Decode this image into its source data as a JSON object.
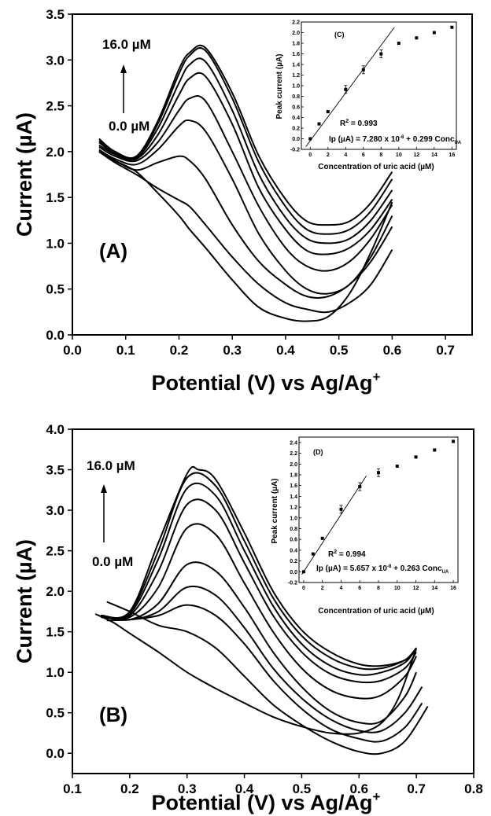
{
  "chart_data": [
    {
      "type": "line",
      "panel_label": "(A)",
      "xlabel": "Potential (V) vs Ag/Ag",
      "xlabel_sup": "+",
      "ylabel": "Current (µA)",
      "xlim": [
        0.0,
        0.75
      ],
      "ylim": [
        0.0,
        3.5
      ],
      "xticks": [
        "0.0",
        "0.1",
        "0.2",
        "0.3",
        "0.4",
        "0.5",
        "0.6",
        "0.7"
      ],
      "yticks": [
        "0.0",
        "0.5",
        "1.0",
        "1.5",
        "2.0",
        "2.5",
        "3.0",
        "3.5"
      ],
      "annotations": {
        "top_label": "16.0 µM",
        "bottom_label": "0.0 µM"
      },
      "series": [
        {
          "x": [
            0.05,
            0.08,
            0.12,
            0.16,
            0.2,
            0.22,
            0.25,
            0.3,
            0.35,
            0.4,
            0.44,
            0.48,
            0.52,
            0.56,
            0.6
          ],
          "y": [
            2.0,
            1.9,
            1.78,
            1.55,
            1.3,
            1.15,
            0.95,
            0.6,
            0.3,
            0.18,
            0.15,
            0.2,
            0.45,
            0.9,
            1.45
          ]
        },
        {
          "x": [
            0.05,
            0.08,
            0.12,
            0.16,
            0.2,
            0.22,
            0.25,
            0.3,
            0.35,
            0.4,
            0.44,
            0.48,
            0.52,
            0.56,
            0.6
          ],
          "y": [
            2.0,
            1.88,
            1.75,
            1.6,
            1.47,
            1.4,
            1.2,
            0.85,
            0.55,
            0.35,
            0.28,
            0.25,
            0.35,
            0.55,
            0.93
          ]
        },
        {
          "x": [
            0.05,
            0.08,
            0.12,
            0.16,
            0.2,
            0.22,
            0.25,
            0.3,
            0.35,
            0.4,
            0.44,
            0.48,
            0.52,
            0.56,
            0.6
          ],
          "y": [
            2.0,
            1.9,
            1.8,
            1.88,
            1.95,
            1.9,
            1.7,
            1.2,
            0.8,
            0.55,
            0.42,
            0.42,
            0.55,
            0.8,
            1.18
          ]
        },
        {
          "x": [
            0.05,
            0.08,
            0.12,
            0.16,
            0.2,
            0.22,
            0.25,
            0.3,
            0.35,
            0.4,
            0.44,
            0.48,
            0.52,
            0.56,
            0.6
          ],
          "y": [
            2.02,
            1.92,
            1.86,
            2.02,
            2.28,
            2.34,
            2.22,
            1.7,
            1.1,
            0.7,
            0.5,
            0.45,
            0.55,
            0.85,
            1.3
          ]
        },
        {
          "x": [
            0.05,
            0.08,
            0.12,
            0.16,
            0.2,
            0.22,
            0.25,
            0.3,
            0.35,
            0.4,
            0.44,
            0.48,
            0.52,
            0.56,
            0.6
          ],
          "y": [
            2.05,
            1.95,
            1.9,
            2.1,
            2.45,
            2.58,
            2.55,
            2.0,
            1.4,
            0.95,
            0.75,
            0.7,
            0.8,
            1.05,
            1.42
          ]
        },
        {
          "x": [
            0.05,
            0.08,
            0.12,
            0.16,
            0.2,
            0.22,
            0.25,
            0.3,
            0.35,
            0.4,
            0.44,
            0.48,
            0.52,
            0.56,
            0.6
          ],
          "y": [
            2.07,
            1.97,
            1.92,
            2.18,
            2.62,
            2.8,
            2.82,
            2.3,
            1.6,
            1.15,
            0.92,
            0.88,
            0.95,
            1.15,
            1.48
          ]
        },
        {
          "x": [
            0.05,
            0.08,
            0.12,
            0.16,
            0.2,
            0.22,
            0.25,
            0.3,
            0.35,
            0.4,
            0.44,
            0.48,
            0.52,
            0.56,
            0.6
          ],
          "y": [
            2.1,
            1.98,
            1.93,
            2.25,
            2.75,
            2.95,
            2.98,
            2.45,
            1.75,
            1.28,
            1.05,
            1.0,
            1.05,
            1.25,
            1.58
          ]
        },
        {
          "x": [
            0.05,
            0.08,
            0.12,
            0.16,
            0.2,
            0.22,
            0.25,
            0.3,
            0.35,
            0.4,
            0.44,
            0.48,
            0.52,
            0.56,
            0.6
          ],
          "y": [
            2.12,
            2.0,
            1.94,
            2.3,
            2.85,
            3.05,
            3.1,
            2.58,
            1.88,
            1.4,
            1.15,
            1.1,
            1.15,
            1.35,
            1.7
          ]
        },
        {
          "x": [
            0.05,
            0.08,
            0.12,
            0.16,
            0.2,
            0.22,
            0.25,
            0.3,
            0.35,
            0.4,
            0.44,
            0.48,
            0.52,
            0.56,
            0.6
          ],
          "y": [
            2.14,
            2.0,
            1.95,
            2.33,
            2.9,
            3.08,
            3.13,
            2.64,
            1.95,
            1.48,
            1.24,
            1.2,
            1.24,
            1.44,
            1.78
          ]
        }
      ],
      "inset": {
        "type": "scatter",
        "panel_label": "(C)",
        "xlabel": "Concentration of uric acid (µM)",
        "ylabel": "Peak current (µA)",
        "xlim": [
          -1,
          16.5
        ],
        "ylim": [
          -0.2,
          2.2
        ],
        "xticks": [
          "0",
          "2",
          "4",
          "6",
          "8",
          "10",
          "12",
          "14",
          "16"
        ],
        "yticks": [
          "-0.2",
          "0.0",
          "0.2",
          "0.4",
          "0.6",
          "0.8",
          "1.0",
          "1.2",
          "1.4",
          "1.6",
          "1.8",
          "2.0",
          "2.2"
        ],
        "x": [
          0,
          1,
          2,
          4,
          6,
          8,
          10,
          12,
          14,
          16
        ],
        "y": [
          0.0,
          0.28,
          0.51,
          0.93,
          1.3,
          1.6,
          1.8,
          1.9,
          2.0,
          2.1
        ],
        "fit": {
          "x": [
            -0.5,
            9.5
          ],
          "y": [
            -0.15,
            2.1
          ]
        },
        "r2_text": "R",
        "r2_sup": "2",
        "r2_value": " = 0.993",
        "equation_parts": [
          "Ip (µA) = 7.280 x 10",
          "-8",
          " + 0.299 Conc",
          "UA"
        ]
      }
    },
    {
      "type": "line",
      "panel_label": "(B)",
      "xlabel": "Potential (V) vs Ag/Ag",
      "xlabel_sup": "+",
      "ylabel": "Current (µA)",
      "xlim": [
        0.1,
        0.8
      ],
      "ylim": [
        -0.25,
        4.0
      ],
      "xticks": [
        "0.1",
        "0.2",
        "0.3",
        "0.4",
        "0.5",
        "0.6",
        "0.7",
        "0.8"
      ],
      "yticks": [
        "0.0",
        "0.5",
        "1.0",
        "1.5",
        "2.0",
        "2.5",
        "3.0",
        "3.5",
        "4.0"
      ],
      "annotations": {
        "top_label": "16.0 µM",
        "bottom_label": "0.0 µM"
      },
      "series": [
        {
          "x": [
            0.14,
            0.17,
            0.2,
            0.25,
            0.3,
            0.35,
            0.4,
            0.45,
            0.5,
            0.55,
            0.6,
            0.64,
            0.67,
            0.7
          ],
          "y": [
            1.72,
            1.62,
            1.48,
            1.25,
            1.0,
            0.8,
            0.62,
            0.45,
            0.33,
            0.25,
            0.25,
            0.38,
            0.7,
            1.3
          ]
        },
        {
          "x": [
            0.16,
            0.2,
            0.25,
            0.3,
            0.35,
            0.4,
            0.45,
            0.5,
            0.55,
            0.6,
            0.64,
            0.68,
            0.72
          ],
          "y": [
            1.87,
            1.75,
            1.58,
            1.5,
            1.3,
            0.95,
            0.6,
            0.35,
            0.15,
            0.02,
            0.0,
            0.15,
            0.58
          ]
        },
        {
          "x": [
            0.16,
            0.2,
            0.25,
            0.3,
            0.35,
            0.4,
            0.45,
            0.5,
            0.55,
            0.6,
            0.64,
            0.68,
            0.71
          ],
          "y": [
            1.64,
            1.65,
            1.7,
            1.83,
            1.7,
            1.35,
            0.9,
            0.55,
            0.3,
            0.18,
            0.15,
            0.32,
            0.62
          ]
        },
        {
          "x": [
            0.15,
            0.2,
            0.25,
            0.3,
            0.35,
            0.4,
            0.45,
            0.5,
            0.55,
            0.6,
            0.64,
            0.68,
            0.71
          ],
          "y": [
            1.68,
            1.65,
            1.75,
            2.05,
            1.95,
            1.55,
            1.05,
            0.68,
            0.42,
            0.28,
            0.28,
            0.5,
            0.82
          ]
        },
        {
          "x": [
            0.15,
            0.2,
            0.25,
            0.3,
            0.35,
            0.4,
            0.45,
            0.5,
            0.55,
            0.6,
            0.64,
            0.68,
            0.7
          ],
          "y": [
            1.7,
            1.65,
            1.85,
            2.33,
            2.25,
            1.8,
            1.25,
            0.82,
            0.52,
            0.38,
            0.4,
            0.7,
            1.0
          ]
        },
        {
          "x": [
            0.15,
            0.2,
            0.25,
            0.3,
            0.35,
            0.4,
            0.45,
            0.5,
            0.55,
            0.6,
            0.64,
            0.68,
            0.7
          ],
          "y": [
            1.7,
            1.68,
            2.05,
            2.78,
            2.7,
            2.1,
            1.5,
            1.05,
            0.78,
            0.68,
            0.72,
            0.95,
            1.2
          ]
        },
        {
          "x": [
            0.15,
            0.2,
            0.25,
            0.3,
            0.35,
            0.4,
            0.45,
            0.5,
            0.55,
            0.6,
            0.64,
            0.68,
            0.7
          ],
          "y": [
            1.7,
            1.7,
            2.25,
            3.07,
            3.0,
            2.35,
            1.7,
            1.25,
            0.98,
            0.88,
            0.9,
            1.05,
            1.25
          ]
        },
        {
          "x": [
            0.15,
            0.2,
            0.25,
            0.3,
            0.35,
            0.4,
            0.45,
            0.5,
            0.55,
            0.6,
            0.64,
            0.68,
            0.7
          ],
          "y": [
            1.7,
            1.72,
            2.4,
            3.27,
            3.18,
            2.5,
            1.82,
            1.35,
            1.08,
            0.97,
            1.0,
            1.12,
            1.3
          ]
        },
        {
          "x": [
            0.15,
            0.2,
            0.25,
            0.3,
            0.35,
            0.4,
            0.45,
            0.5,
            0.55,
            0.6,
            0.64,
            0.68,
            0.7
          ],
          "y": [
            1.7,
            1.74,
            2.5,
            3.4,
            3.3,
            2.62,
            1.92,
            1.45,
            1.18,
            1.05,
            1.05,
            1.15,
            1.3
          ]
        },
        {
          "x": [
            0.15,
            0.2,
            0.25,
            0.3,
            0.32,
            0.35,
            0.4,
            0.45,
            0.5,
            0.55,
            0.6,
            0.64,
            0.68,
            0.7
          ],
          "y": [
            1.7,
            1.75,
            2.6,
            3.45,
            3.5,
            3.38,
            2.72,
            2.0,
            1.52,
            1.25,
            1.1,
            1.08,
            1.15,
            1.28
          ]
        }
      ],
      "inset": {
        "type": "scatter",
        "panel_label": "(D)",
        "xlabel": "Concentration of uric acid (µM)",
        "ylabel": "Peak current (µA)",
        "xlim": [
          -0.5,
          16.5
        ],
        "ylim": [
          -0.2,
          2.5
        ],
        "xticks": [
          "0",
          "2",
          "4",
          "6",
          "8",
          "10",
          "12",
          "14",
          "16"
        ],
        "yticks": [
          "-0.2",
          "0.0",
          "0.2",
          "0.4",
          "0.6",
          "0.8",
          "1.0",
          "1.2",
          "1.4",
          "1.6",
          "1.8",
          "2.0",
          "2.2",
          "2.4"
        ],
        "x": [
          0,
          1,
          2,
          4,
          6,
          8,
          10,
          12,
          14,
          16
        ],
        "y": [
          0.0,
          0.33,
          0.62,
          1.16,
          1.58,
          1.84,
          1.96,
          2.13,
          2.26,
          2.42
        ],
        "fit": {
          "x": [
            -0.2,
            6.7
          ],
          "y": [
            -0.05,
            1.78
          ]
        },
        "r2_text": "R",
        "r2_sup": "2",
        "r2_value": " = 0.994",
        "equation_parts": [
          "Ip (µA) = 5.657 x 10",
          "-8",
          " + 0.263 Conc",
          "UA"
        ]
      }
    }
  ]
}
